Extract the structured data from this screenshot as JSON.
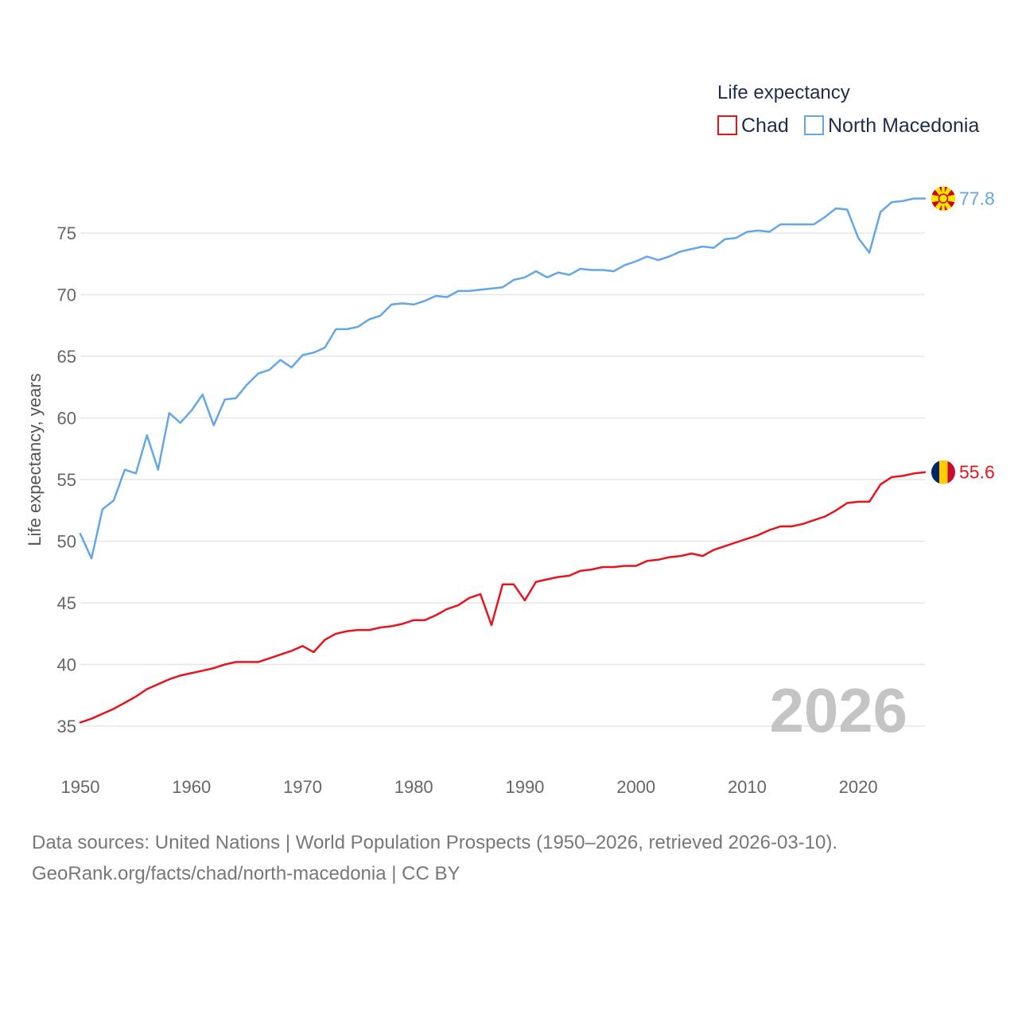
{
  "chart_data": {
    "type": "line",
    "legend_title": "Life expectancy",
    "ylabel": "Life expectancy, years",
    "xlabel": "",
    "xlim": [
      1950,
      2026
    ],
    "ylim": [
      32.5,
      79
    ],
    "x_ticks": [
      1950,
      1960,
      1970,
      1980,
      1990,
      2000,
      2010,
      2020
    ],
    "y_ticks": [
      35,
      40,
      45,
      50,
      55,
      60,
      65,
      70,
      75
    ],
    "year_label": "2026",
    "legend_position": "top-right",
    "series": [
      {
        "name": "Chad",
        "color": "#e8141c",
        "end_label": "55.6",
        "flag": "chad-flag",
        "start_year": 1950,
        "values": [
          35.3,
          35.6,
          36.0,
          36.4,
          36.9,
          37.4,
          38.0,
          38.4,
          38.8,
          39.1,
          39.3,
          39.5,
          39.7,
          40.0,
          40.2,
          40.2,
          40.2,
          40.5,
          40.8,
          41.1,
          41.5,
          41.0,
          42.0,
          42.5,
          42.7,
          42.8,
          42.8,
          43.0,
          43.1,
          43.3,
          43.6,
          43.6,
          44.0,
          44.5,
          44.8,
          45.4,
          45.7,
          43.2,
          46.5,
          46.5,
          45.2,
          46.7,
          46.9,
          47.1,
          47.2,
          47.6,
          47.7,
          47.9,
          47.9,
          48.0,
          48.0,
          48.4,
          48.5,
          48.7,
          48.8,
          49.0,
          48.8,
          49.3,
          49.6,
          49.9,
          50.2,
          50.5,
          50.9,
          51.2,
          51.2,
          51.4,
          51.7,
          52.0,
          52.5,
          53.1,
          53.2,
          53.2,
          54.6,
          55.2,
          55.3,
          55.5,
          55.6
        ]
      },
      {
        "name": "North Macedonia",
        "color": "#63a7e6",
        "end_label": "77.8",
        "flag": "north-macedonia-flag",
        "start_year": 1950,
        "values": [
          50.6,
          48.6,
          52.6,
          53.3,
          55.8,
          55.5,
          58.6,
          55.8,
          60.4,
          59.6,
          60.6,
          61.9,
          59.4,
          61.5,
          61.6,
          62.7,
          63.6,
          63.9,
          64.7,
          64.1,
          65.1,
          65.3,
          65.7,
          67.2,
          67.2,
          67.4,
          68.0,
          68.3,
          69.2,
          69.3,
          69.2,
          69.5,
          69.9,
          69.8,
          70.3,
          70.3,
          70.4,
          70.5,
          70.6,
          71.2,
          71.4,
          71.9,
          71.4,
          71.8,
          71.6,
          72.1,
          72.0,
          72.0,
          71.9,
          72.4,
          72.7,
          73.1,
          72.8,
          73.1,
          73.5,
          73.7,
          73.9,
          73.8,
          74.5,
          74.6,
          75.1,
          75.2,
          75.1,
          75.7,
          75.7,
          75.7,
          75.7,
          76.3,
          77.0,
          76.9,
          74.6,
          73.4,
          76.7,
          77.5,
          77.6,
          77.8,
          77.8
        ]
      }
    ],
    "colors": {
      "gridline": "#e6e6e6",
      "tick_text": "#666666",
      "watermark": "#c4c4c4"
    }
  },
  "footer": {
    "line1": "Data sources: United Nations | World Population Prospects (1950–2026, retrieved 2026-03-10).",
    "line2": "GeoRank.org/facts/chad/north-macedonia | CC BY"
  }
}
